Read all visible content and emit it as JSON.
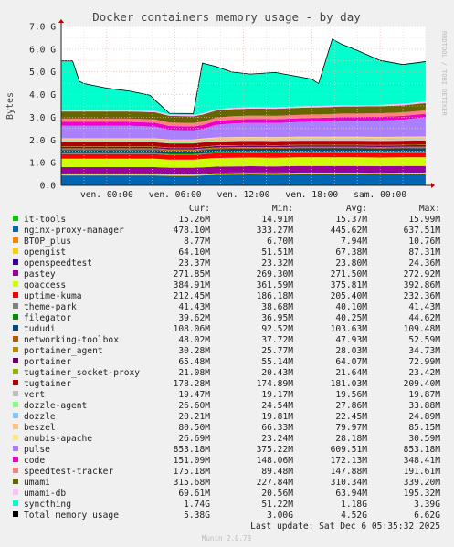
{
  "chart_data": {
    "type": "area",
    "title": "Docker containers memory usage - by day",
    "ylabel": "Bytes",
    "side_label": "RRDTOOL / TOBI OETIKER",
    "ylim": [
      0,
      7.0
    ],
    "y_ticks": [
      "0.0",
      "1.0 G",
      "2.0 G",
      "3.0 G",
      "4.0 G",
      "5.0 G",
      "6.0 G",
      "7.0 G"
    ],
    "x_ticks": [
      "ven. 00:00",
      "ven. 06:00",
      "ven. 12:00",
      "ven. 18:00",
      "sam. 00:00"
    ],
    "grid": true,
    "x": [
      0,
      1.0,
      1.6,
      2.0,
      4.0,
      6.0,
      7.8,
      8.2,
      9.5,
      11.6,
      12.4,
      13.6,
      15.0,
      16.6,
      18.8,
      20.8,
      22.0,
      22.6,
      23.8,
      24.6,
      26.0,
      28.0,
      30.0,
      32.0
    ],
    "series": [
      {
        "name": "it-tools",
        "color": "#00CC00",
        "values": [
          0.015,
          0.015,
          0.015,
          0.015,
          0.015,
          0.015,
          0.015,
          0.015,
          0.015,
          0.015,
          0.015,
          0.015,
          0.015,
          0.015,
          0.015,
          0.015,
          0.015,
          0.015,
          0.015,
          0.015,
          0.015,
          0.015,
          0.015,
          0.015
        ]
      },
      {
        "name": "nginx-proxy-manager",
        "color": "#0066B3",
        "values": [
          0.42,
          0.42,
          0.42,
          0.42,
          0.42,
          0.42,
          0.42,
          0.42,
          0.4,
          0.4,
          0.42,
          0.45,
          0.46,
          0.47,
          0.46,
          0.47,
          0.47,
          0.47,
          0.47,
          0.47,
          0.47,
          0.47,
          0.48,
          0.48
        ]
      },
      {
        "name": "BTOP_plus",
        "color": "#FF8000",
        "values": [
          0.008,
          0.008,
          0.008,
          0.008,
          0.008,
          0.008,
          0.008,
          0.008,
          0.008,
          0.008,
          0.008,
          0.008,
          0.008,
          0.008,
          0.008,
          0.008,
          0.008,
          0.008,
          0.008,
          0.008,
          0.008,
          0.008,
          0.008,
          0.008
        ]
      },
      {
        "name": "opengist",
        "color": "#FFCC00",
        "values": [
          0.07,
          0.07,
          0.07,
          0.07,
          0.07,
          0.07,
          0.07,
          0.07,
          0.06,
          0.06,
          0.06,
          0.06,
          0.06,
          0.06,
          0.06,
          0.07,
          0.07,
          0.07,
          0.07,
          0.07,
          0.07,
          0.06,
          0.06,
          0.06
        ]
      },
      {
        "name": "openspeedtest",
        "color": "#330099",
        "values": [
          0.024,
          0.024,
          0.024,
          0.024,
          0.024,
          0.024,
          0.024,
          0.024,
          0.024,
          0.024,
          0.024,
          0.024,
          0.024,
          0.024,
          0.024,
          0.024,
          0.024,
          0.024,
          0.024,
          0.024,
          0.024,
          0.024,
          0.024,
          0.024
        ]
      },
      {
        "name": "pastey",
        "color": "#990099",
        "values": [
          0.27,
          0.27,
          0.27,
          0.27,
          0.27,
          0.27,
          0.27,
          0.27,
          0.27,
          0.27,
          0.27,
          0.27,
          0.27,
          0.27,
          0.27,
          0.27,
          0.27,
          0.27,
          0.27,
          0.27,
          0.27,
          0.27,
          0.27,
          0.27
        ]
      },
      {
        "name": "goaccess",
        "color": "#CCFF00",
        "values": [
          0.37,
          0.37,
          0.37,
          0.37,
          0.37,
          0.37,
          0.37,
          0.37,
          0.36,
          0.36,
          0.37,
          0.38,
          0.38,
          0.38,
          0.38,
          0.38,
          0.38,
          0.38,
          0.38,
          0.38,
          0.38,
          0.38,
          0.38,
          0.38
        ]
      },
      {
        "name": "uptime-kuma",
        "color": "#FF0000",
        "values": [
          0.2,
          0.2,
          0.2,
          0.2,
          0.2,
          0.2,
          0.2,
          0.2,
          0.19,
          0.19,
          0.2,
          0.21,
          0.21,
          0.21,
          0.21,
          0.21,
          0.21,
          0.21,
          0.21,
          0.21,
          0.21,
          0.21,
          0.21,
          0.21
        ]
      },
      {
        "name": "theme-park",
        "color": "#808080",
        "values": [
          0.04,
          0.04,
          0.04,
          0.04,
          0.04,
          0.04,
          0.04,
          0.04,
          0.04,
          0.04,
          0.04,
          0.04,
          0.04,
          0.04,
          0.04,
          0.04,
          0.04,
          0.04,
          0.04,
          0.04,
          0.04,
          0.04,
          0.04,
          0.04
        ]
      },
      {
        "name": "filegator",
        "color": "#008F00",
        "values": [
          0.04,
          0.04,
          0.04,
          0.04,
          0.04,
          0.04,
          0.04,
          0.04,
          0.04,
          0.04,
          0.04,
          0.04,
          0.04,
          0.04,
          0.04,
          0.04,
          0.04,
          0.04,
          0.04,
          0.04,
          0.04,
          0.04,
          0.04,
          0.04
        ]
      },
      {
        "name": "tududi",
        "color": "#00487D",
        "values": [
          0.1,
          0.1,
          0.1,
          0.1,
          0.1,
          0.1,
          0.1,
          0.1,
          0.1,
          0.1,
          0.1,
          0.1,
          0.1,
          0.1,
          0.1,
          0.1,
          0.1,
          0.1,
          0.1,
          0.1,
          0.1,
          0.1,
          0.1,
          0.11
        ]
      },
      {
        "name": "networking-toolbox",
        "color": "#B35A00",
        "values": [
          0.047,
          0.047,
          0.047,
          0.047,
          0.047,
          0.047,
          0.047,
          0.047,
          0.047,
          0.047,
          0.047,
          0.047,
          0.047,
          0.047,
          0.047,
          0.047,
          0.047,
          0.047,
          0.047,
          0.047,
          0.047,
          0.047,
          0.047,
          0.047
        ]
      },
      {
        "name": "portainer_agent",
        "color": "#B38F00",
        "values": [
          0.028,
          0.028,
          0.028,
          0.028,
          0.028,
          0.028,
          0.028,
          0.028,
          0.028,
          0.028,
          0.028,
          0.028,
          0.028,
          0.028,
          0.028,
          0.028,
          0.028,
          0.028,
          0.028,
          0.028,
          0.028,
          0.028,
          0.028,
          0.028
        ]
      },
      {
        "name": "portainer",
        "color": "#6B006B",
        "values": [
          0.064,
          0.064,
          0.064,
          0.064,
          0.064,
          0.064,
          0.064,
          0.064,
          0.064,
          0.064,
          0.064,
          0.064,
          0.064,
          0.064,
          0.064,
          0.064,
          0.064,
          0.064,
          0.064,
          0.064,
          0.064,
          0.064,
          0.064,
          0.064
        ]
      },
      {
        "name": "tugtainer_socket-proxy",
        "color": "#8FB300",
        "values": [
          0.021,
          0.021,
          0.021,
          0.021,
          0.021,
          0.021,
          0.021,
          0.021,
          0.021,
          0.021,
          0.021,
          0.021,
          0.021,
          0.021,
          0.021,
          0.021,
          0.021,
          0.021,
          0.021,
          0.021,
          0.021,
          0.021,
          0.021,
          0.021
        ]
      },
      {
        "name": "tugtainer",
        "color": "#B30000",
        "values": [
          0.18,
          0.18,
          0.18,
          0.18,
          0.18,
          0.18,
          0.18,
          0.18,
          0.18,
          0.18,
          0.18,
          0.18,
          0.18,
          0.18,
          0.18,
          0.18,
          0.18,
          0.18,
          0.18,
          0.18,
          0.18,
          0.18,
          0.18,
          0.18
        ]
      },
      {
        "name": "vert",
        "color": "#BEBEBE",
        "values": [
          0.019,
          0.019,
          0.019,
          0.019,
          0.019,
          0.019,
          0.019,
          0.019,
          0.019,
          0.019,
          0.019,
          0.019,
          0.019,
          0.019,
          0.019,
          0.019,
          0.019,
          0.019,
          0.019,
          0.019,
          0.019,
          0.019,
          0.019,
          0.019
        ]
      },
      {
        "name": "dozzle-agent",
        "color": "#80FF80",
        "values": [
          0.028,
          0.028,
          0.028,
          0.028,
          0.028,
          0.028,
          0.028,
          0.028,
          0.028,
          0.028,
          0.028,
          0.028,
          0.028,
          0.028,
          0.028,
          0.028,
          0.028,
          0.028,
          0.028,
          0.028,
          0.028,
          0.028,
          0.028,
          0.028
        ]
      },
      {
        "name": "dozzle",
        "color": "#80C9FF",
        "values": [
          0.022,
          0.022,
          0.022,
          0.022,
          0.022,
          0.022,
          0.022,
          0.022,
          0.022,
          0.022,
          0.022,
          0.022,
          0.022,
          0.022,
          0.022,
          0.022,
          0.022,
          0.022,
          0.022,
          0.022,
          0.022,
          0.022,
          0.022,
          0.022
        ]
      },
      {
        "name": "beszel",
        "color": "#FFC080",
        "values": [
          0.08,
          0.08,
          0.08,
          0.08,
          0.08,
          0.08,
          0.08,
          0.08,
          0.08,
          0.08,
          0.08,
          0.08,
          0.08,
          0.08,
          0.08,
          0.08,
          0.08,
          0.08,
          0.08,
          0.08,
          0.08,
          0.08,
          0.08,
          0.08
        ]
      },
      {
        "name": "anubis-apache",
        "color": "#FFE680",
        "values": [
          0.028,
          0.028,
          0.028,
          0.028,
          0.028,
          0.028,
          0.028,
          0.028,
          0.028,
          0.028,
          0.028,
          0.028,
          0.028,
          0.028,
          0.028,
          0.028,
          0.028,
          0.028,
          0.028,
          0.028,
          0.028,
          0.028,
          0.028,
          0.028
        ]
      },
      {
        "name": "pulse",
        "color": "#AA80FF",
        "values": [
          0.55,
          0.55,
          0.55,
          0.55,
          0.55,
          0.55,
          0.52,
          0.52,
          0.42,
          0.4,
          0.42,
          0.55,
          0.6,
          0.62,
          0.62,
          0.64,
          0.66,
          0.66,
          0.68,
          0.7,
          0.7,
          0.72,
          0.75,
          0.85
        ]
      },
      {
        "name": "code",
        "color": "#EE00CC",
        "values": [
          0.17,
          0.17,
          0.17,
          0.17,
          0.17,
          0.17,
          0.17,
          0.17,
          0.17,
          0.17,
          0.17,
          0.17,
          0.17,
          0.17,
          0.17,
          0.17,
          0.17,
          0.17,
          0.17,
          0.17,
          0.17,
          0.17,
          0.17,
          0.15
        ]
      },
      {
        "name": "speedtest-tracker",
        "color": "#FF8080",
        "values": [
          0.15,
          0.15,
          0.15,
          0.15,
          0.15,
          0.15,
          0.15,
          0.15,
          0.15,
          0.15,
          0.15,
          0.15,
          0.15,
          0.15,
          0.15,
          0.15,
          0.15,
          0.15,
          0.15,
          0.15,
          0.15,
          0.15,
          0.15,
          0.15
        ]
      },
      {
        "name": "umami",
        "color": "#666600",
        "values": [
          0.31,
          0.31,
          0.31,
          0.31,
          0.31,
          0.31,
          0.31,
          0.31,
          0.3,
          0.3,
          0.31,
          0.31,
          0.31,
          0.31,
          0.31,
          0.31,
          0.31,
          0.31,
          0.31,
          0.31,
          0.31,
          0.31,
          0.31,
          0.32
        ]
      },
      {
        "name": "umami-db",
        "color": "#FFBFFF",
        "values": [
          0.06,
          0.06,
          0.06,
          0.06,
          0.06,
          0.06,
          0.06,
          0.06,
          0.06,
          0.06,
          0.06,
          0.06,
          0.06,
          0.06,
          0.06,
          0.06,
          0.06,
          0.06,
          0.06,
          0.06,
          0.06,
          0.06,
          0.07,
          0.07
        ]
      },
      {
        "name": "syncthing",
        "color": "#00FFCC",
        "values": [
          2.17,
          2.17,
          1.27,
          1.17,
          0.97,
          0.84,
          0.69,
          0.49,
          0.05,
          0.06,
          2.21,
          1.88,
          1.58,
          1.46,
          1.54,
          1.32,
          1.19,
          0.99,
          2.93,
          2.69,
          2.41,
          1.96,
          1.73,
          1.76
        ]
      }
    ],
    "total_line_color": "#000000",
    "legend": {
      "headers": [
        "Cur:",
        "Min:",
        "Avg:",
        "Max:"
      ],
      "rows": [
        {
          "name": "it-tools",
          "color": "#00CC00",
          "cur": "15.26M",
          "min": "14.91M",
          "avg": "15.37M",
          "max": "15.99M"
        },
        {
          "name": "nginx-proxy-manager",
          "color": "#0066B3",
          "cur": "478.10M",
          "min": "333.27M",
          "avg": "445.62M",
          "max": "637.51M"
        },
        {
          "name": "BTOP_plus",
          "color": "#FF8000",
          "cur": "8.77M",
          "min": "6.70M",
          "avg": "7.94M",
          "max": "10.76M"
        },
        {
          "name": "opengist",
          "color": "#FFCC00",
          "cur": "64.10M",
          "min": "51.51M",
          "avg": "67.38M",
          "max": "87.31M"
        },
        {
          "name": "openspeedtest",
          "color": "#330099",
          "cur": "23.37M",
          "min": "23.32M",
          "avg": "23.80M",
          "max": "24.36M"
        },
        {
          "name": "pastey",
          "color": "#990099",
          "cur": "271.85M",
          "min": "269.30M",
          "avg": "271.50M",
          "max": "272.92M"
        },
        {
          "name": "goaccess",
          "color": "#CCFF00",
          "cur": "384.91M",
          "min": "361.59M",
          "avg": "375.81M",
          "max": "392.86M"
        },
        {
          "name": "uptime-kuma",
          "color": "#FF0000",
          "cur": "212.45M",
          "min": "186.18M",
          "avg": "205.40M",
          "max": "232.36M"
        },
        {
          "name": "theme-park",
          "color": "#808080",
          "cur": "41.43M",
          "min": "38.68M",
          "avg": "40.10M",
          "max": "41.43M"
        },
        {
          "name": "filegator",
          "color": "#008F00",
          "cur": "39.62M",
          "min": "36.95M",
          "avg": "40.25M",
          "max": "44.62M"
        },
        {
          "name": "tududi",
          "color": "#00487D",
          "cur": "108.06M",
          "min": "92.52M",
          "avg": "103.63M",
          "max": "109.48M"
        },
        {
          "name": "networking-toolbox",
          "color": "#B35A00",
          "cur": "48.02M",
          "min": "37.72M",
          "avg": "47.93M",
          "max": "52.59M"
        },
        {
          "name": "portainer_agent",
          "color": "#B38F00",
          "cur": "30.28M",
          "min": "25.77M",
          "avg": "28.03M",
          "max": "34.73M"
        },
        {
          "name": "portainer",
          "color": "#6B006B",
          "cur": "65.48M",
          "min": "55.14M",
          "avg": "64.07M",
          "max": "72.99M"
        },
        {
          "name": "tugtainer_socket-proxy",
          "color": "#8FB300",
          "cur": "21.08M",
          "min": "20.43M",
          "avg": "21.64M",
          "max": "23.42M"
        },
        {
          "name": "tugtainer",
          "color": "#B30000",
          "cur": "178.28M",
          "min": "174.89M",
          "avg": "181.03M",
          "max": "209.40M"
        },
        {
          "name": "vert",
          "color": "#BEBEBE",
          "cur": "19.47M",
          "min": "19.17M",
          "avg": "19.56M",
          "max": "19.87M"
        },
        {
          "name": "dozzle-agent",
          "color": "#80FF80",
          "cur": "26.60M",
          "min": "24.54M",
          "avg": "27.86M",
          "max": "33.88M"
        },
        {
          "name": "dozzle",
          "color": "#80C9FF",
          "cur": "20.21M",
          "min": "19.81M",
          "avg": "22.45M",
          "max": "24.89M"
        },
        {
          "name": "beszel",
          "color": "#FFC080",
          "cur": "80.50M",
          "min": "66.33M",
          "avg": "79.97M",
          "max": "85.15M"
        },
        {
          "name": "anubis-apache",
          "color": "#FFE680",
          "cur": "26.69M",
          "min": "23.24M",
          "avg": "28.18M",
          "max": "30.59M"
        },
        {
          "name": "pulse",
          "color": "#AA80FF",
          "cur": "853.18M",
          "min": "375.22M",
          "avg": "609.51M",
          "max": "853.18M"
        },
        {
          "name": "code",
          "color": "#EE00CC",
          "cur": "151.09M",
          "min": "148.06M",
          "avg": "172.13M",
          "max": "348.41M"
        },
        {
          "name": "speedtest-tracker",
          "color": "#FF8080",
          "cur": "175.18M",
          "min": "89.48M",
          "avg": "147.88M",
          "max": "191.61M"
        },
        {
          "name": "umami",
          "color": "#666600",
          "cur": "315.68M",
          "min": "227.84M",
          "avg": "310.34M",
          "max": "339.20M"
        },
        {
          "name": "umami-db",
          "color": "#FFBFFF",
          "cur": "69.61M",
          "min": "20.56M",
          "avg": "63.94M",
          "max": "195.32M"
        },
        {
          "name": "syncthing",
          "color": "#00FFCC",
          "cur": "1.74G",
          "min": "51.22M",
          "avg": "1.18G",
          "max": "3.39G"
        },
        {
          "name": "Total memory usage",
          "color": "#000000",
          "cur": "5.38G",
          "min": "3.00G",
          "avg": "4.52G",
          "max": "6.62G"
        }
      ]
    },
    "last_update": "Last update: Sat Dec  6 05:35:32 2025",
    "footer": "Munin 2.0.73"
  }
}
